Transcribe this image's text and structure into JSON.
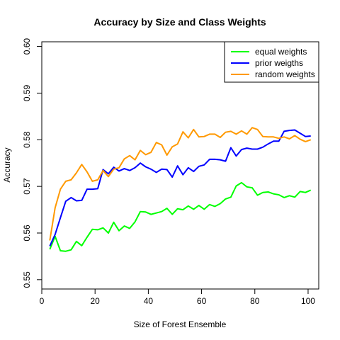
{
  "chart_data": {
    "type": "line",
    "title": "Accuracy by Size and Class Weights",
    "xlabel": "Size of Forest Ensemble",
    "ylabel": "Accuracy",
    "xlim": [
      0,
      104
    ],
    "ylim": [
      0.548,
      0.601
    ],
    "x_ticks": [
      0,
      20,
      40,
      60,
      80,
      100
    ],
    "y_ticks": [
      0.55,
      0.56,
      0.57,
      0.58,
      0.59,
      0.6
    ],
    "x_tick_labels": [
      "0",
      "20",
      "40",
      "60",
      "80",
      "100"
    ],
    "y_tick_labels": [
      "0.55",
      "0.56",
      "0.57",
      "0.58",
      "0.59",
      "0.60"
    ],
    "grid": false,
    "legend_position": "top-right",
    "x": [
      3,
      5,
      7,
      9,
      11,
      13,
      15,
      17,
      19,
      21,
      23,
      25,
      27,
      29,
      31,
      33,
      35,
      37,
      39,
      41,
      43,
      45,
      47,
      49,
      51,
      53,
      55,
      57,
      59,
      61,
      63,
      65,
      67,
      69,
      71,
      73,
      75,
      77,
      79,
      81,
      83,
      85,
      87,
      89,
      91,
      93,
      95,
      97,
      99,
      101
    ],
    "series": [
      {
        "name": "equal weights",
        "color": "#00ff00",
        "values": [
          0.5565,
          0.5593,
          0.5562,
          0.5561,
          0.5564,
          0.5582,
          0.5573,
          0.5591,
          0.5608,
          0.5607,
          0.5611,
          0.56,
          0.5623,
          0.5605,
          0.5615,
          0.561,
          0.5624,
          0.5646,
          0.5645,
          0.564,
          0.5643,
          0.5646,
          0.5653,
          0.564,
          0.5652,
          0.565,
          0.5658,
          0.5651,
          0.5659,
          0.5651,
          0.5661,
          0.5657,
          0.5663,
          0.5673,
          0.5677,
          0.5701,
          0.5708,
          0.5699,
          0.5697,
          0.5681,
          0.5687,
          0.5688,
          0.5684,
          0.5682,
          0.5676,
          0.568,
          0.5677,
          0.5689,
          0.5687,
          0.5692
        ]
      },
      {
        "name": "prior weigths",
        "color": "#0000ff",
        "values": [
          0.5572,
          0.5597,
          0.5633,
          0.5668,
          0.5676,
          0.5669,
          0.567,
          0.5694,
          0.5694,
          0.5695,
          0.5736,
          0.5727,
          0.5741,
          0.5733,
          0.5738,
          0.5734,
          0.574,
          0.575,
          0.5742,
          0.5737,
          0.573,
          0.5737,
          0.5736,
          0.572,
          0.5744,
          0.5725,
          0.574,
          0.5732,
          0.5743,
          0.5746,
          0.5758,
          0.5758,
          0.5757,
          0.5754,
          0.5783,
          0.5765,
          0.5779,
          0.5782,
          0.578,
          0.578,
          0.5784,
          0.5791,
          0.5797,
          0.5797,
          0.5818,
          0.582,
          0.5821,
          0.5814,
          0.5807,
          0.5808
        ]
      },
      {
        "name": "random weights",
        "color": "#ff9900",
        "values": [
          0.5584,
          0.5654,
          0.5694,
          0.5711,
          0.5714,
          0.5729,
          0.5747,
          0.5731,
          0.5711,
          0.5714,
          0.5734,
          0.5721,
          0.5737,
          0.574,
          0.5759,
          0.5766,
          0.5757,
          0.5777,
          0.5768,
          0.5773,
          0.5794,
          0.5789,
          0.5767,
          0.5785,
          0.5791,
          0.5817,
          0.5804,
          0.5822,
          0.5806,
          0.5807,
          0.5812,
          0.5812,
          0.5805,
          0.5816,
          0.5818,
          0.5812,
          0.5819,
          0.5812,
          0.5826,
          0.5822,
          0.5807,
          0.5806,
          0.5806,
          0.5803,
          0.5806,
          0.5802,
          0.5809,
          0.5801,
          0.5796,
          0.58
        ]
      }
    ]
  }
}
